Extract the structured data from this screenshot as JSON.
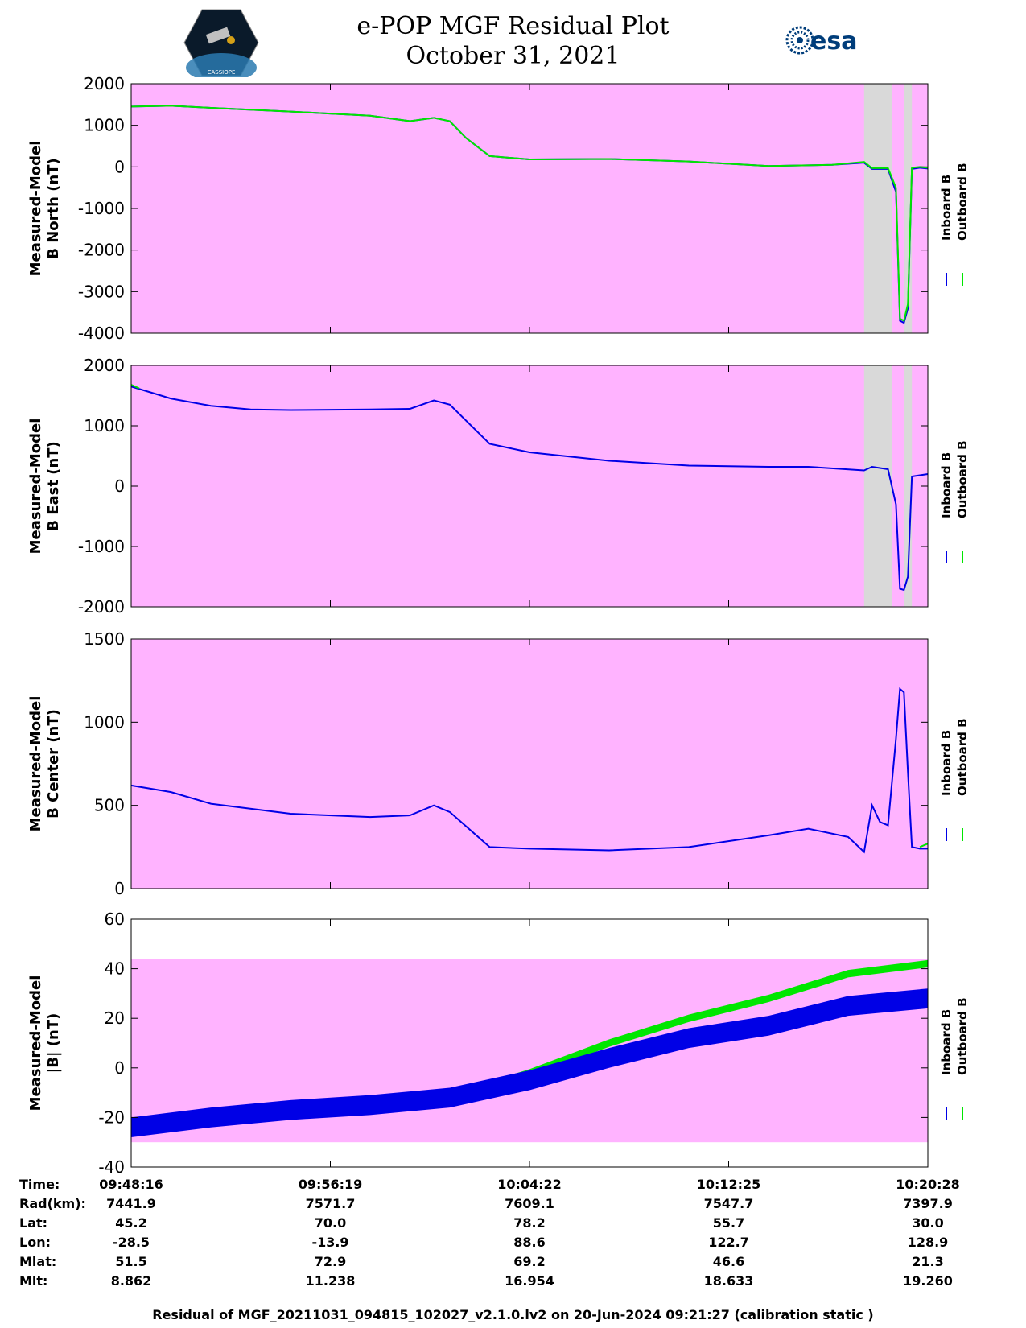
{
  "header": {
    "title_line1": "e-POP MGF Residual Plot",
    "title_line2": "October 31, 2021",
    "left_logo_text": "CASSIOPE",
    "right_logo_text": "esa"
  },
  "colors": {
    "background_band": "#ffb3ff",
    "gap_band": "#d9d9d9",
    "inboard": "#0000e6",
    "outboard": "#00e600"
  },
  "legend": {
    "inboard_label": "Inboard B",
    "outboard_label": "Outboard B"
  },
  "chart_data": [
    {
      "type": "line",
      "ylabel_line1": "Measured-Model",
      "ylabel_line2": "B North (nT)",
      "ylim": [
        -4000,
        2000
      ],
      "yticks": [
        "2000",
        "1000",
        "0",
        "-1000",
        "-2000",
        "-3000",
        "-4000"
      ],
      "band": [
        -4000,
        2000
      ],
      "gaps": [
        [
          0.92,
          0.955
        ],
        [
          0.97,
          0.98
        ]
      ],
      "series": [
        {
          "name": "Inboard B",
          "x": [
            0,
            0.05,
            0.1,
            0.2,
            0.3,
            0.35,
            0.38,
            0.4,
            0.42,
            0.45,
            0.5,
            0.6,
            0.7,
            0.8,
            0.88,
            0.92,
            0.93,
            0.95,
            0.96,
            0.965,
            0.97,
            0.975,
            0.98,
            0.99,
            1.0
          ],
          "values": [
            1450,
            1470,
            1420,
            1330,
            1230,
            1100,
            1180,
            1100,
            700,
            260,
            180,
            190,
            130,
            20,
            50,
            100,
            -50,
            -50,
            -600,
            -3700,
            -3750,
            -3400,
            -50,
            -20,
            -40
          ]
        },
        {
          "name": "Outboard B",
          "x": [
            0,
            0.05,
            0.1,
            0.2,
            0.3,
            0.35,
            0.38,
            0.4,
            0.42,
            0.45,
            0.5,
            0.6,
            0.7,
            0.8,
            0.88,
            0.92,
            0.93,
            0.95,
            0.96,
            0.965,
            0.97,
            0.975,
            0.98,
            0.99,
            1.0
          ],
          "values": [
            1450,
            1470,
            1420,
            1330,
            1230,
            1100,
            1180,
            1100,
            700,
            260,
            180,
            190,
            130,
            20,
            50,
            120,
            -30,
            -30,
            -500,
            -3650,
            -3700,
            -3300,
            -20,
            0,
            -20
          ]
        }
      ]
    },
    {
      "type": "line",
      "ylabel_line1": "Measured-Model",
      "ylabel_line2": "B East (nT)",
      "ylim": [
        -2000,
        2000
      ],
      "yticks": [
        "2000",
        "1000",
        "0",
        "-1000",
        "-2000"
      ],
      "band": [
        -2000,
        2000
      ],
      "gaps": [
        [
          0.92,
          0.955
        ],
        [
          0.97,
          0.98
        ]
      ],
      "series": [
        {
          "name": "Inboard B",
          "x": [
            0,
            0.05,
            0.1,
            0.15,
            0.2,
            0.3,
            0.35,
            0.38,
            0.4,
            0.45,
            0.5,
            0.6,
            0.7,
            0.8,
            0.85,
            0.92,
            0.93,
            0.95,
            0.96,
            0.965,
            0.97,
            0.975,
            0.98,
            0.99,
            1.0
          ],
          "values": [
            1650,
            1450,
            1330,
            1270,
            1260,
            1270,
            1280,
            1420,
            1350,
            700,
            560,
            420,
            340,
            320,
            320,
            260,
            320,
            280,
            -300,
            -1700,
            -1720,
            -1500,
            160,
            180,
            200
          ]
        },
        {
          "name": "Outboard B",
          "x": [
            0,
            0.01
          ],
          "values": [
            1680,
            1620
          ]
        }
      ]
    },
    {
      "type": "line",
      "ylabel_line1": "Measured-Model",
      "ylabel_line2": "B Center (nT)",
      "ylim": [
        0,
        1500
      ],
      "yticks": [
        "1500",
        "1000",
        "500",
        "0"
      ],
      "band": [
        0,
        1500
      ],
      "gaps": [],
      "series": [
        {
          "name": "Inboard B",
          "x": [
            0,
            0.05,
            0.1,
            0.2,
            0.3,
            0.35,
            0.38,
            0.4,
            0.45,
            0.5,
            0.6,
            0.7,
            0.8,
            0.85,
            0.9,
            0.92,
            0.93,
            0.94,
            0.95,
            0.96,
            0.965,
            0.97,
            0.975,
            0.98,
            0.99,
            1.0
          ],
          "values": [
            620,
            580,
            510,
            450,
            430,
            440,
            500,
            460,
            250,
            240,
            230,
            250,
            320,
            360,
            310,
            220,
            500,
            400,
            380,
            900,
            1200,
            1180,
            700,
            250,
            240,
            240
          ]
        },
        {
          "name": "Outboard B",
          "x": [
            0.99,
            1.0
          ],
          "values": [
            250,
            270
          ]
        }
      ]
    },
    {
      "type": "line",
      "ylabel_line1": "Measured-Model",
      "ylabel_line2": "|B| (nT)",
      "ylim": [
        -40,
        60
      ],
      "yticks": [
        "60",
        "40",
        "20",
        "0",
        "-20",
        "-40"
      ],
      "band": [
        -30,
        44
      ],
      "gaps": [],
      "series": [
        {
          "name": "Outboard B",
          "x": [
            0,
            0.1,
            0.2,
            0.3,
            0.4,
            0.5,
            0.6,
            0.7,
            0.8,
            0.9,
            1.0
          ],
          "values": [
            -26,
            -21,
            -17,
            -15,
            -12,
            -2,
            10,
            20,
            28,
            38,
            42
          ],
          "band_width": 3
        },
        {
          "name": "Inboard B",
          "x": [
            0,
            0.1,
            0.2,
            0.3,
            0.4,
            0.5,
            0.6,
            0.7,
            0.8,
            0.9,
            1.0
          ],
          "values": [
            -24,
            -20,
            -17,
            -15,
            -12,
            -5,
            4,
            12,
            17,
            25,
            28
          ],
          "band_width": 8
        }
      ]
    }
  ],
  "x_axis_ticks": [
    "09:48:16",
    "09:56:19",
    "10:04:22",
    "10:12:25",
    "10:20:28"
  ],
  "info_table": {
    "rows": [
      {
        "label": "Time:",
        "values": [
          "09:48:16",
          "09:56:19",
          "10:04:22",
          "10:12:25",
          "10:20:28"
        ]
      },
      {
        "label": "Rad(km):",
        "values": [
          "7441.9",
          "7571.7",
          "7609.1",
          "7547.7",
          "7397.9"
        ]
      },
      {
        "label": "Lat:",
        "values": [
          "45.2",
          "70.0",
          "78.2",
          "55.7",
          "30.0"
        ]
      },
      {
        "label": "Lon:",
        "values": [
          "-28.5",
          "-13.9",
          "88.6",
          "122.7",
          "128.9"
        ]
      },
      {
        "label": "Mlat:",
        "values": [
          "51.5",
          "72.9",
          "69.2",
          "46.6",
          "21.3"
        ]
      },
      {
        "label": "Mlt:",
        "values": [
          "8.862",
          "11.238",
          "16.954",
          "18.633",
          "19.260"
        ]
      }
    ]
  },
  "footer": {
    "text": "Residual of MGF_20211031_094815_102027_v2.1.0.lv2 on 20-Jun-2024 09:21:27 (calibration static )"
  }
}
